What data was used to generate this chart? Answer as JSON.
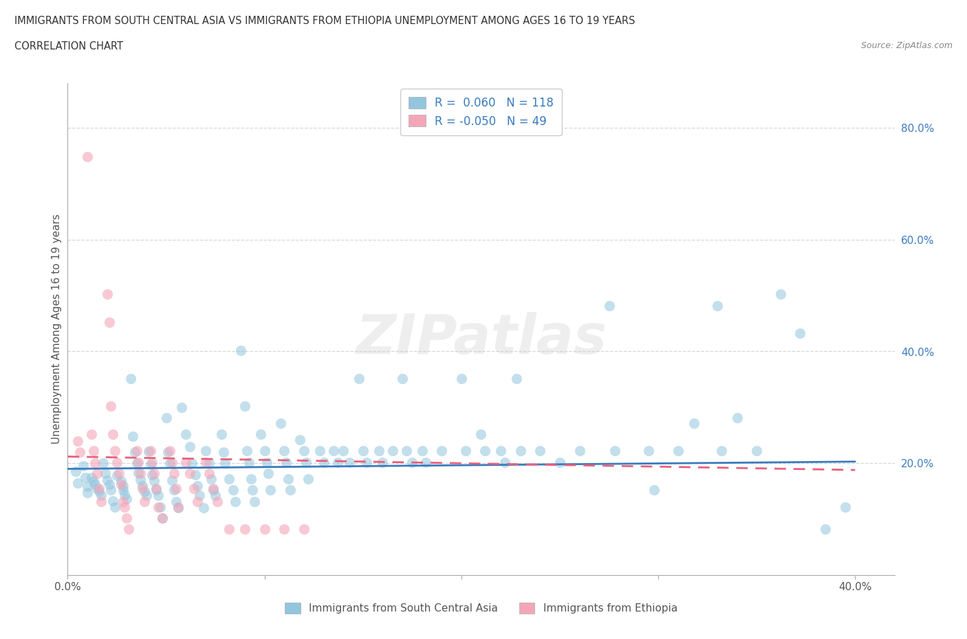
{
  "title_line1": "IMMIGRANTS FROM SOUTH CENTRAL ASIA VS IMMIGRANTS FROM ETHIOPIA UNEMPLOYMENT AMONG AGES 16 TO 19 YEARS",
  "title_line2": "CORRELATION CHART",
  "source_text": "Source: ZipAtlas.com",
  "ylabel": "Unemployment Among Ages 16 to 19 years",
  "xlim": [
    0.0,
    0.42
  ],
  "ylim": [
    0.0,
    0.88
  ],
  "color_blue": "#92c5de",
  "color_pink": "#f4a6b8",
  "color_blue_line": "#3a7bbf",
  "color_pink_line": "#e8607a",
  "watermark": "ZIPatlas",
  "scatter_blue": [
    [
      0.004,
      0.185
    ],
    [
      0.005,
      0.165
    ],
    [
      0.008,
      0.195
    ],
    [
      0.009,
      0.175
    ],
    [
      0.01,
      0.158
    ],
    [
      0.01,
      0.148
    ],
    [
      0.012,
      0.175
    ],
    [
      0.013,
      0.168
    ],
    [
      0.014,
      0.162
    ],
    [
      0.015,
      0.155
    ],
    [
      0.016,
      0.15
    ],
    [
      0.017,
      0.143
    ],
    [
      0.018,
      0.2
    ],
    [
      0.019,
      0.182
    ],
    [
      0.02,
      0.17
    ],
    [
      0.021,
      0.162
    ],
    [
      0.022,
      0.152
    ],
    [
      0.023,
      0.133
    ],
    [
      0.024,
      0.122
    ],
    [
      0.025,
      0.178
    ],
    [
      0.027,
      0.168
    ],
    [
      0.028,
      0.16
    ],
    [
      0.028,
      0.152
    ],
    [
      0.029,
      0.144
    ],
    [
      0.03,
      0.137
    ],
    [
      0.032,
      0.352
    ],
    [
      0.033,
      0.248
    ],
    [
      0.034,
      0.22
    ],
    [
      0.035,
      0.2
    ],
    [
      0.036,
      0.183
    ],
    [
      0.037,
      0.171
    ],
    [
      0.038,
      0.16
    ],
    [
      0.039,
      0.15
    ],
    [
      0.04,
      0.142
    ],
    [
      0.041,
      0.221
    ],
    [
      0.042,
      0.198
    ],
    [
      0.043,
      0.18
    ],
    [
      0.044,
      0.168
    ],
    [
      0.045,
      0.152
    ],
    [
      0.046,
      0.142
    ],
    [
      0.047,
      0.122
    ],
    [
      0.048,
      0.102
    ],
    [
      0.05,
      0.282
    ],
    [
      0.051,
      0.22
    ],
    [
      0.052,
      0.2
    ],
    [
      0.053,
      0.17
    ],
    [
      0.054,
      0.152
    ],
    [
      0.055,
      0.132
    ],
    [
      0.056,
      0.12
    ],
    [
      0.058,
      0.3
    ],
    [
      0.06,
      0.252
    ],
    [
      0.062,
      0.23
    ],
    [
      0.063,
      0.2
    ],
    [
      0.065,
      0.18
    ],
    [
      0.066,
      0.16
    ],
    [
      0.067,
      0.142
    ],
    [
      0.069,
      0.12
    ],
    [
      0.07,
      0.222
    ],
    [
      0.072,
      0.2
    ],
    [
      0.073,
      0.172
    ],
    [
      0.074,
      0.152
    ],
    [
      0.075,
      0.142
    ],
    [
      0.078,
      0.252
    ],
    [
      0.079,
      0.22
    ],
    [
      0.08,
      0.2
    ],
    [
      0.082,
      0.172
    ],
    [
      0.084,
      0.152
    ],
    [
      0.085,
      0.132
    ],
    [
      0.088,
      0.402
    ],
    [
      0.09,
      0.302
    ],
    [
      0.091,
      0.222
    ],
    [
      0.092,
      0.202
    ],
    [
      0.093,
      0.172
    ],
    [
      0.094,
      0.152
    ],
    [
      0.095,
      0.132
    ],
    [
      0.098,
      0.252
    ],
    [
      0.1,
      0.222
    ],
    [
      0.101,
      0.202
    ],
    [
      0.102,
      0.182
    ],
    [
      0.103,
      0.152
    ],
    [
      0.108,
      0.272
    ],
    [
      0.11,
      0.222
    ],
    [
      0.111,
      0.202
    ],
    [
      0.112,
      0.172
    ],
    [
      0.113,
      0.152
    ],
    [
      0.118,
      0.242
    ],
    [
      0.12,
      0.222
    ],
    [
      0.121,
      0.202
    ],
    [
      0.122,
      0.172
    ],
    [
      0.128,
      0.222
    ],
    [
      0.13,
      0.202
    ],
    [
      0.135,
      0.222
    ],
    [
      0.137,
      0.202
    ],
    [
      0.14,
      0.222
    ],
    [
      0.143,
      0.202
    ],
    [
      0.148,
      0.352
    ],
    [
      0.15,
      0.222
    ],
    [
      0.152,
      0.202
    ],
    [
      0.158,
      0.222
    ],
    [
      0.16,
      0.202
    ],
    [
      0.165,
      0.222
    ],
    [
      0.17,
      0.352
    ],
    [
      0.172,
      0.222
    ],
    [
      0.175,
      0.202
    ],
    [
      0.18,
      0.222
    ],
    [
      0.182,
      0.202
    ],
    [
      0.19,
      0.222
    ],
    [
      0.2,
      0.352
    ],
    [
      0.202,
      0.222
    ],
    [
      0.21,
      0.252
    ],
    [
      0.212,
      0.222
    ],
    [
      0.22,
      0.222
    ],
    [
      0.222,
      0.202
    ],
    [
      0.228,
      0.352
    ],
    [
      0.23,
      0.222
    ],
    [
      0.24,
      0.222
    ],
    [
      0.25,
      0.202
    ],
    [
      0.26,
      0.222
    ],
    [
      0.275,
      0.482
    ],
    [
      0.278,
      0.222
    ],
    [
      0.295,
      0.222
    ],
    [
      0.298,
      0.152
    ],
    [
      0.31,
      0.222
    ],
    [
      0.318,
      0.272
    ],
    [
      0.33,
      0.482
    ],
    [
      0.332,
      0.222
    ],
    [
      0.34,
      0.282
    ],
    [
      0.35,
      0.222
    ],
    [
      0.362,
      0.502
    ],
    [
      0.372,
      0.432
    ],
    [
      0.385,
      0.082
    ],
    [
      0.395,
      0.122
    ]
  ],
  "scatter_pink": [
    [
      0.005,
      0.24
    ],
    [
      0.006,
      0.22
    ],
    [
      0.01,
      0.748
    ],
    [
      0.012,
      0.252
    ],
    [
      0.013,
      0.222
    ],
    [
      0.014,
      0.2
    ],
    [
      0.015,
      0.182
    ],
    [
      0.016,
      0.155
    ],
    [
      0.017,
      0.132
    ],
    [
      0.02,
      0.502
    ],
    [
      0.021,
      0.452
    ],
    [
      0.022,
      0.302
    ],
    [
      0.023,
      0.252
    ],
    [
      0.024,
      0.222
    ],
    [
      0.025,
      0.202
    ],
    [
      0.026,
      0.182
    ],
    [
      0.027,
      0.162
    ],
    [
      0.028,
      0.132
    ],
    [
      0.029,
      0.122
    ],
    [
      0.03,
      0.102
    ],
    [
      0.031,
      0.082
    ],
    [
      0.035,
      0.222
    ],
    [
      0.036,
      0.202
    ],
    [
      0.037,
      0.182
    ],
    [
      0.038,
      0.155
    ],
    [
      0.039,
      0.132
    ],
    [
      0.042,
      0.222
    ],
    [
      0.043,
      0.202
    ],
    [
      0.044,
      0.182
    ],
    [
      0.045,
      0.155
    ],
    [
      0.046,
      0.122
    ],
    [
      0.048,
      0.102
    ],
    [
      0.052,
      0.222
    ],
    [
      0.053,
      0.202
    ],
    [
      0.054,
      0.182
    ],
    [
      0.055,
      0.155
    ],
    [
      0.056,
      0.122
    ],
    [
      0.06,
      0.202
    ],
    [
      0.062,
      0.182
    ],
    [
      0.064,
      0.155
    ],
    [
      0.066,
      0.132
    ],
    [
      0.07,
      0.202
    ],
    [
      0.072,
      0.182
    ],
    [
      0.074,
      0.155
    ],
    [
      0.076,
      0.132
    ],
    [
      0.082,
      0.082
    ],
    [
      0.09,
      0.082
    ],
    [
      0.1,
      0.082
    ],
    [
      0.11,
      0.082
    ],
    [
      0.12,
      0.082
    ]
  ],
  "blue_trend_x": [
    0.0,
    0.4
  ],
  "blue_trend_y": [
    0.19,
    0.203
  ],
  "pink_trend_x": [
    0.0,
    0.4
  ],
  "pink_trend_y": [
    0.212,
    0.188
  ],
  "ytick_vals": [
    0.2,
    0.4,
    0.6,
    0.8
  ],
  "ytick_labels": [
    "20.0%",
    "40.0%",
    "60.0%",
    "80.0%"
  ],
  "xtick_vals": [
    0.0,
    0.1,
    0.2,
    0.3,
    0.4
  ],
  "xtick_labels": [
    "0.0%",
    "",
    "",
    "",
    "40.0%"
  ],
  "grid_color": "#cccccc",
  "legend_text_color": "#3a7bbf",
  "bottom_labels": [
    "Immigrants from South Central Asia",
    "Immigrants from Ethiopia"
  ]
}
